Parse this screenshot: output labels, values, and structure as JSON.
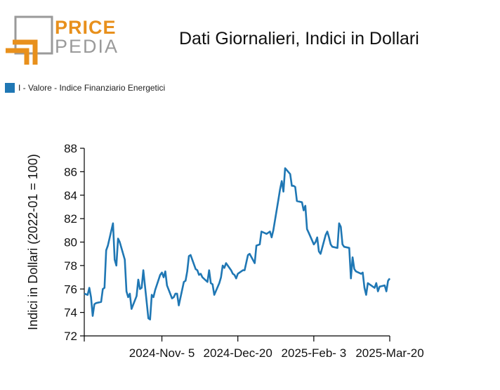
{
  "logo": {
    "line1": "PRICE",
    "line2": "PEDIA"
  },
  "chart_data": {
    "type": "line",
    "title": "Dati Giornalieri, Indici in Dollari",
    "ylabel": "Indici in Dollari (2022-01 = 100)",
    "xlabel": "",
    "ylim": [
      72,
      88
    ],
    "yticks": [
      72,
      74,
      76,
      78,
      80,
      82,
      84,
      86,
      88
    ],
    "xlim": [
      "2024-09-20",
      "2025-03-20"
    ],
    "xticks": [
      "2024-11-05",
      "2024-12-20",
      "2025-02-03",
      "2025-03-20"
    ],
    "xtick_labels": [
      "2024-Nov- 5",
      "2024-Dec-20",
      "2025-Feb- 3",
      "2025-Mar-20"
    ],
    "legend_position": "top-left",
    "color": "#1f77b4",
    "series": [
      {
        "name": "I - Valore - Indice Finanziario Energetici",
        "x": [
          "2024-09-20",
          "2024-09-22",
          "2024-09-23",
          "2024-09-24",
          "2024-09-25",
          "2024-09-26",
          "2024-09-27",
          "2024-09-30",
          "2024-10-01",
          "2024-10-02",
          "2024-10-03",
          "2024-10-04",
          "2024-10-07",
          "2024-10-08",
          "2024-10-09",
          "2024-10-10",
          "2024-10-11",
          "2024-10-14",
          "2024-10-15",
          "2024-10-16",
          "2024-10-17",
          "2024-10-18",
          "2024-10-21",
          "2024-10-22",
          "2024-10-23",
          "2024-10-24",
          "2024-10-25",
          "2024-10-28",
          "2024-10-29",
          "2024-10-30",
          "2024-10-31",
          "2024-11-01",
          "2024-11-04",
          "2024-11-05",
          "2024-11-06",
          "2024-11-07",
          "2024-11-08",
          "2024-11-11",
          "2024-11-12",
          "2024-11-13",
          "2024-11-14",
          "2024-11-15",
          "2024-11-18",
          "2024-11-19",
          "2024-11-20",
          "2024-11-21",
          "2024-11-22",
          "2024-11-25",
          "2024-11-26",
          "2024-11-27",
          "2024-11-28",
          "2024-11-29",
          "2024-12-02",
          "2024-12-03",
          "2024-12-04",
          "2024-12-05",
          "2024-12-06",
          "2024-12-09",
          "2024-12-10",
          "2024-12-11",
          "2024-12-12",
          "2024-12-13",
          "2024-12-16",
          "2024-12-17",
          "2024-12-18",
          "2024-12-19",
          "2024-12-20",
          "2024-12-23",
          "2024-12-24",
          "2024-12-26",
          "2024-12-27",
          "2024-12-30",
          "2024-12-31",
          "2025-01-02",
          "2025-01-03",
          "2025-01-06",
          "2025-01-07",
          "2025-01-08",
          "2025-01-09",
          "2025-01-10",
          "2025-01-13",
          "2025-01-14",
          "2025-01-15",
          "2025-01-16",
          "2025-01-17",
          "2025-01-20",
          "2025-01-21",
          "2025-01-22",
          "2025-01-23",
          "2025-01-24",
          "2025-01-27",
          "2025-01-28",
          "2025-01-29",
          "2025-01-30",
          "2025-01-31",
          "2025-02-03",
          "2025-02-04",
          "2025-02-05",
          "2025-02-06",
          "2025-02-07",
          "2025-02-10",
          "2025-02-11",
          "2025-02-12",
          "2025-02-13",
          "2025-02-14",
          "2025-02-17",
          "2025-02-18",
          "2025-02-19",
          "2025-02-20",
          "2025-02-21",
          "2025-02-24",
          "2025-02-25",
          "2025-02-26",
          "2025-02-27",
          "2025-02-28",
          "2025-03-03",
          "2025-03-04",
          "2025-03-05",
          "2025-03-06",
          "2025-03-07",
          "2025-03-10",
          "2025-03-11",
          "2025-03-12",
          "2025-03-13",
          "2025-03-14",
          "2025-03-17",
          "2025-03-18",
          "2025-03-19",
          "2025-03-20"
        ],
        "values": [
          75.6,
          75.5,
          76.1,
          75.3,
          73.7,
          74.7,
          74.8,
          74.9,
          76.0,
          76.1,
          79.3,
          79.7,
          81.6,
          78.5,
          78.0,
          80.3,
          80.0,
          78.5,
          75.8,
          75.3,
          75.6,
          74.3,
          75.4,
          76.8,
          76.0,
          76.1,
          77.6,
          73.5,
          73.4,
          75.5,
          75.3,
          75.9,
          77.2,
          77.4,
          77.0,
          77.5,
          76.3,
          75.2,
          75.3,
          75.6,
          75.6,
          74.6,
          76.6,
          76.7,
          77.5,
          78.8,
          78.9,
          77.7,
          77.6,
          77.2,
          77.3,
          77.0,
          76.6,
          77.6,
          76.5,
          76.4,
          75.5,
          76.5,
          77.0,
          78.0,
          77.8,
          78.2,
          77.6,
          77.3,
          77.2,
          76.9,
          77.3,
          77.6,
          77.6,
          78.9,
          79.0,
          78.2,
          79.7,
          79.8,
          80.9,
          80.7,
          80.8,
          80.9,
          80.4,
          81.0,
          83.6,
          84.5,
          85.2,
          84.3,
          86.3,
          85.8,
          84.8,
          84.8,
          84.7,
          83.5,
          83.4,
          82.7,
          83.1,
          81.1,
          80.8,
          79.8,
          80.0,
          80.4,
          79.2,
          79.0,
          80.6,
          80.9,
          80.4,
          79.8,
          79.6,
          79.5,
          81.6,
          81.3,
          79.8,
          79.6,
          79.5,
          76.9,
          78.7,
          77.7,
          77.5,
          77.3,
          77.4,
          76.1,
          75.5,
          76.5,
          76.2,
          76.1,
          76.5,
          75.8,
          76.2,
          76.3,
          75.8,
          76.7,
          76.9
        ]
      }
    ]
  }
}
